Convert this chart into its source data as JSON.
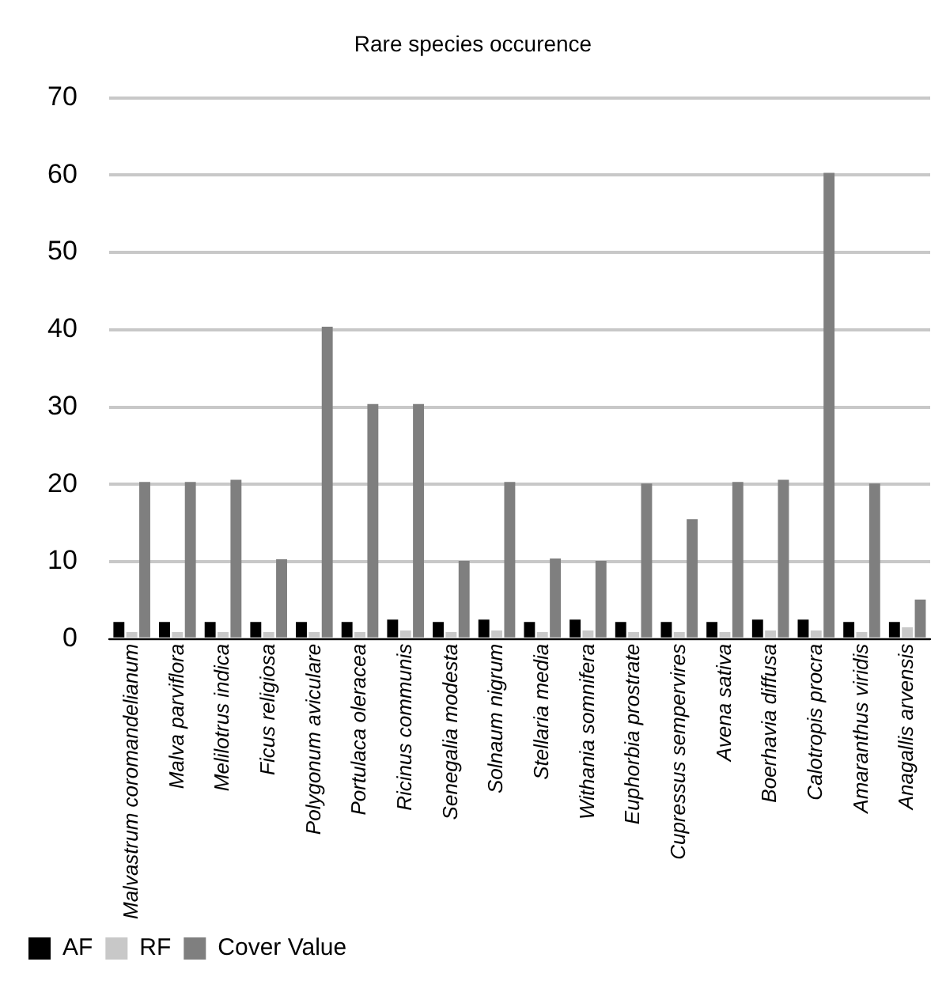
{
  "chart_data": {
    "type": "bar",
    "title": "Rare species occurence",
    "categories": [
      "Malvastrum coromandelianum",
      "Malva parviflora",
      "Melilotrus indica",
      "Ficus religiosa",
      "Polygonum aviculare",
      "Portulaca oleracea",
      "Ricinus communis",
      "Senegalia modesta",
      "Solnaum nigrum",
      "Stellaria media",
      "Withania somnifera",
      "Euphorbia prostrate",
      "Cupressus sempervires",
      "Avena sativa",
      "Boerhavia diffusa",
      "Calotropis procra",
      "Amaranthus viridis",
      "Anagallis arvensis"
    ],
    "series": [
      {
        "name": "AF",
        "color": "#000000",
        "values": [
          2.2,
          2.2,
          2.2,
          2.2,
          2.2,
          2.2,
          2.5,
          2.2,
          2.5,
          2.2,
          2.5,
          2.2,
          2.2,
          2.2,
          2.5,
          2.5,
          2.2,
          2.2
        ]
      },
      {
        "name": "RF",
        "color": "#c8c8c8",
        "values": [
          0.9,
          0.9,
          0.9,
          0.9,
          0.9,
          0.9,
          1.1,
          0.9,
          1.1,
          0.9,
          1.1,
          0.9,
          0.9,
          0.9,
          1.1,
          1.1,
          0.9,
          1.5
        ]
      },
      {
        "name": "Cover Value",
        "color": "#7f7f7f",
        "values": [
          20.3,
          20.3,
          20.6,
          10.3,
          40.4,
          30.4,
          30.4,
          10.1,
          20.3,
          10.4,
          10.1,
          20.1,
          15.5,
          20.3,
          20.6,
          60.3,
          20.1,
          5.1
        ]
      }
    ],
    "ylim": [
      0,
      70
    ],
    "yticks": [
      0,
      10,
      20,
      30,
      40,
      50,
      60,
      70
    ],
    "grid": "y",
    "legend": "bottom left"
  }
}
